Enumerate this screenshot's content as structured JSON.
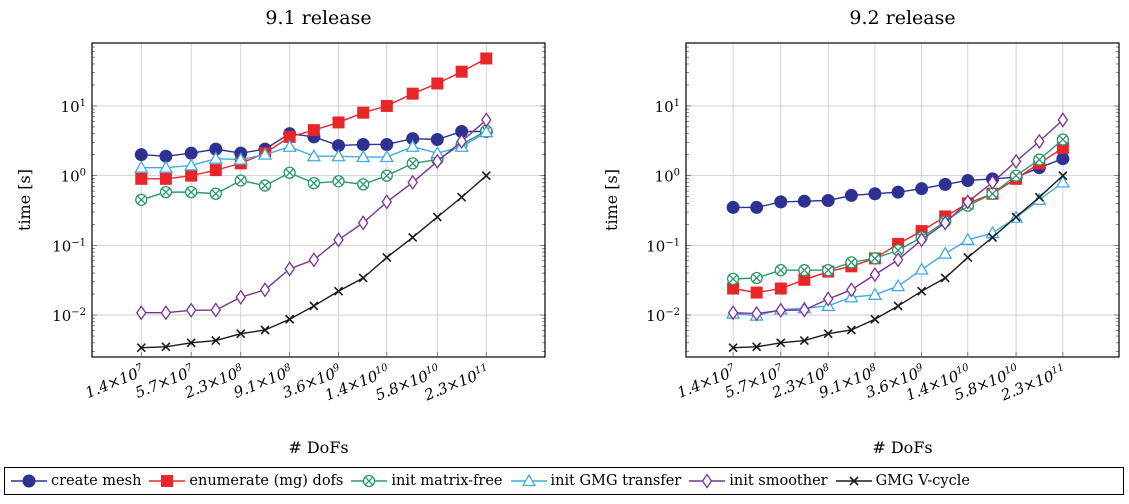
{
  "x_axis": {
    "ticks": [
      "1.4×10",
      "5.7×10",
      "2.3×10",
      "9.1×10",
      "3.6×10",
      "1.4×10",
      "5.8×10",
      "2.3×10"
    ],
    "tick_exponents": [
      "7",
      "7",
      "8",
      "8",
      "9",
      "10",
      "10",
      "11"
    ],
    "tick_values": [
      14000000,
      57000000,
      230000000,
      910000000,
      3600000000,
      14000000000,
      58000000000,
      230000000000
    ]
  },
  "y_axis": {
    "ticks": [
      "10",
      "10",
      "10",
      "10"
    ],
    "tick_exponents": [
      "−2",
      "−1",
      "0",
      "1"
    ]
  },
  "series_style": [
    {
      "color": "#2e3192",
      "marker": "circle"
    },
    {
      "color": "#e8262a",
      "marker": "square"
    },
    {
      "color": "#2a9a6a",
      "marker": "otimes"
    },
    {
      "color": "#41a9e0",
      "marker": "triangle"
    },
    {
      "color": "#7b3294",
      "marker": "diamond"
    },
    {
      "color": "#1a1a1a",
      "marker": "x"
    }
  ],
  "chart_data": [
    {
      "type": "line",
      "title": "9.1 release",
      "xlabel": "# DoFs",
      "ylabel": "time [s]",
      "x_scale": "log",
      "y_scale": "log",
      "xlim": [
        3500000,
        1200000000000
      ],
      "ylim": [
        0.0025,
        80
      ],
      "grid": true,
      "x": [
        14000000,
        28000000,
        57000000,
        114000000,
        230000000,
        455000000,
        910000000,
        1800000000,
        3600000000,
        7200000000,
        14000000000,
        29000000000,
        58000000000,
        115000000000,
        230000000000
      ],
      "series": [
        {
          "name": "create mesh",
          "values": [
            2.0,
            1.9,
            2.1,
            2.4,
            2.1,
            2.4,
            4.0,
            3.6,
            2.7,
            2.8,
            2.8,
            3.4,
            3.3,
            4.3,
            4.3
          ]
        },
        {
          "name": "enumerate (mg) dofs",
          "values": [
            0.9,
            0.9,
            1.0,
            1.2,
            1.5,
            2.1,
            3.6,
            4.5,
            5.8,
            8.0,
            10.0,
            15.0,
            21.0,
            31.0,
            48.0
          ]
        },
        {
          "name": "init matrix-free",
          "values": [
            0.45,
            0.58,
            0.58,
            0.55,
            0.85,
            0.72,
            1.1,
            0.78,
            0.83,
            0.75,
            1.0,
            1.5,
            1.7,
            2.8,
            4.4
          ]
        },
        {
          "name": "init GMG transfer",
          "values": [
            1.3,
            1.3,
            1.4,
            1.75,
            1.7,
            2.0,
            2.6,
            1.9,
            1.9,
            1.85,
            1.85,
            2.6,
            2.1,
            2.6,
            4.2
          ]
        },
        {
          "name": "init smoother",
          "values": [
            0.0108,
            0.0108,
            0.0117,
            0.0118,
            0.018,
            0.023,
            0.046,
            0.062,
            0.12,
            0.21,
            0.42,
            0.8,
            1.6,
            3.1,
            6.3
          ]
        },
        {
          "name": "GMG V-cycle",
          "values": [
            0.0034,
            0.0035,
            0.004,
            0.0043,
            0.0054,
            0.0061,
            0.0087,
            0.0135,
            0.022,
            0.034,
            0.067,
            0.13,
            0.255,
            0.49,
            1.0
          ]
        }
      ]
    },
    {
      "type": "line",
      "title": "9.2 release",
      "xlabel": "# DoFs",
      "ylabel": "time [s]",
      "x_scale": "log",
      "y_scale": "log",
      "xlim": [
        3500000,
        1200000000000
      ],
      "ylim": [
        0.0025,
        80
      ],
      "grid": true,
      "x": [
        14000000,
        28000000,
        57000000,
        114000000,
        230000000,
        455000000,
        910000000,
        1800000000,
        3600000000,
        7200000000,
        14000000000,
        29000000000,
        58000000000,
        115000000000,
        230000000000
      ],
      "series": [
        {
          "name": "create mesh",
          "values": [
            0.35,
            0.35,
            0.42,
            0.43,
            0.44,
            0.52,
            0.55,
            0.58,
            0.65,
            0.75,
            0.85,
            0.9,
            0.95,
            1.3,
            1.75
          ]
        },
        {
          "name": "enumerate (mg) dofs",
          "values": [
            0.024,
            0.021,
            0.024,
            0.032,
            0.042,
            0.05,
            0.065,
            0.105,
            0.16,
            0.26,
            0.4,
            0.55,
            0.9,
            1.5,
            2.5
          ]
        },
        {
          "name": "init matrix-free",
          "values": [
            0.033,
            0.034,
            0.044,
            0.044,
            0.044,
            0.057,
            0.065,
            0.085,
            0.13,
            0.22,
            0.37,
            0.55,
            1.0,
            1.7,
            3.3
          ]
        },
        {
          "name": "init GMG transfer",
          "values": [
            0.0105,
            0.0098,
            0.012,
            0.0125,
            0.0135,
            0.018,
            0.0195,
            0.026,
            0.045,
            0.076,
            0.12,
            0.15,
            0.25,
            0.45,
            0.8
          ]
        },
        {
          "name": "init smoother",
          "values": [
            0.0108,
            0.0105,
            0.0117,
            0.0118,
            0.017,
            0.023,
            0.038,
            0.062,
            0.12,
            0.21,
            0.42,
            0.8,
            1.6,
            3.1,
            6.3
          ]
        },
        {
          "name": "GMG V-cycle",
          "values": [
            0.0034,
            0.0035,
            0.004,
            0.0043,
            0.0054,
            0.0061,
            0.0087,
            0.0135,
            0.022,
            0.034,
            0.067,
            0.13,
            0.255,
            0.49,
            1.0
          ]
        }
      ]
    }
  ]
}
